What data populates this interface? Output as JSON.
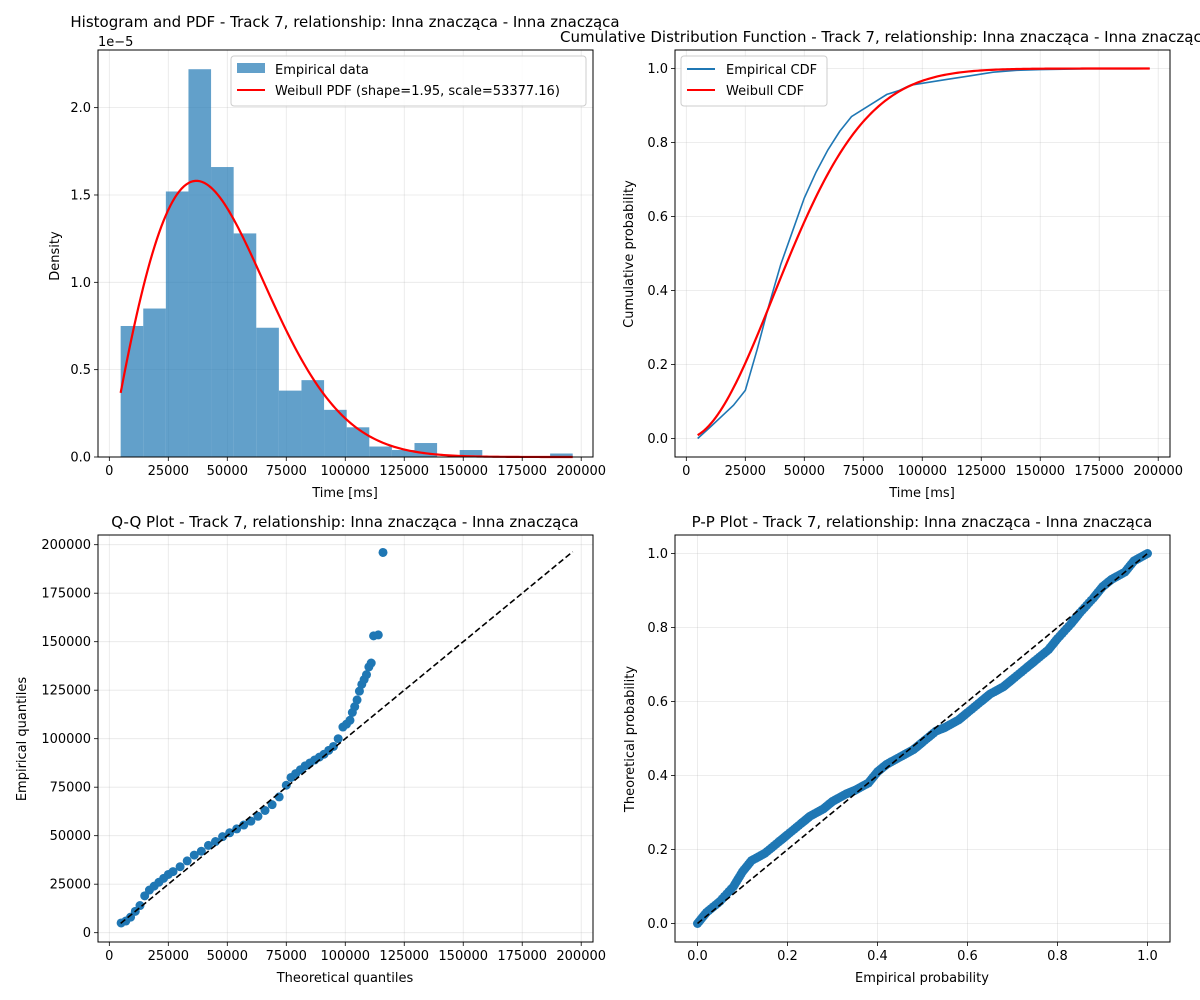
{
  "chart_data": [
    {
      "id": "hist",
      "type": "bar",
      "title": "Histogram and PDF - Track 7, relationship: Inna znacząca - Inna znacząca",
      "xlabel": "Time [ms]",
      "ylabel": "Density",
      "y_offset_label": "1e−5",
      "xlim": [
        -4800,
        205000
      ],
      "ylim": [
        0,
        2.33
      ],
      "xticks": [
        0,
        25000,
        50000,
        75000,
        100000,
        125000,
        150000,
        175000,
        200000
      ],
      "xtick_labels": [
        "0",
        "25000",
        "50000",
        "75000",
        "100000",
        "125000",
        "150000",
        "175000",
        "200000"
      ],
      "yticks": [
        0,
        0.5,
        1.0,
        1.5,
        2.0
      ],
      "ytick_labels": [
        "0.0",
        "0.5",
        "1.0",
        "1.5",
        "2.0"
      ],
      "grid": true,
      "legend_position": "upper-right",
      "bin_edges": [
        4800,
        14380,
        23960,
        33540,
        43120,
        52700,
        62280,
        71860,
        81440,
        91020,
        100600,
        110180,
        119760,
        129340,
        138920,
        148500,
        158080,
        167660,
        177240,
        186820,
        196400
      ],
      "values": [
        0.75,
        0.85,
        1.52,
        2.22,
        1.66,
        1.28,
        0.74,
        0.38,
        0.44,
        0.27,
        0.17,
        0.06,
        0.04,
        0.08,
        0.0,
        0.04,
        0.0,
        0.0,
        0.0,
        0.02
      ],
      "series": [
        {
          "name": "Empirical data",
          "kind": "bar",
          "color": "#1f77b4"
        },
        {
          "name": "Weibull PDF (shape=1.95, scale=53377.16)",
          "kind": "line",
          "color": "#ff0000",
          "shape": 1.95,
          "scale": 53377.16,
          "x_range": [
            4800,
            196400
          ]
        }
      ]
    },
    {
      "id": "cdf",
      "type": "line",
      "title": "Cumulative Distribution Function - Track 7, relationship: Inna znacząca - Inna znacząca",
      "xlabel": "Time [ms]",
      "ylabel": "Cumulative probability",
      "xlim": [
        -4800,
        205000
      ],
      "ylim": [
        -0.05,
        1.05
      ],
      "xticks": [
        0,
        25000,
        50000,
        75000,
        100000,
        125000,
        150000,
        175000,
        200000
      ],
      "xtick_labels": [
        "0",
        "25000",
        "50000",
        "75000",
        "100000",
        "125000",
        "150000",
        "175000",
        "200000"
      ],
      "yticks": [
        0,
        0.2,
        0.4,
        0.6,
        0.8,
        1.0
      ],
      "ytick_labels": [
        "0.0",
        "0.2",
        "0.4",
        "0.6",
        "0.8",
        "1.0"
      ],
      "grid": true,
      "legend_position": "upper-left",
      "series": [
        {
          "name": "Empirical CDF",
          "kind": "line",
          "color": "#1f77b4",
          "x": [
            4800,
            10000,
            15000,
            20000,
            25000,
            30000,
            35000,
            40000,
            45000,
            50000,
            55000,
            60000,
            65000,
            70000,
            75000,
            80000,
            85000,
            90000,
            95000,
            100000,
            110000,
            120000,
            130000,
            140000,
            150000,
            160000,
            170000,
            180000,
            190000,
            196400
          ],
          "y": [
            0.0,
            0.03,
            0.06,
            0.09,
            0.13,
            0.24,
            0.36,
            0.47,
            0.56,
            0.65,
            0.72,
            0.78,
            0.83,
            0.87,
            0.89,
            0.91,
            0.93,
            0.94,
            0.955,
            0.96,
            0.97,
            0.98,
            0.99,
            0.995,
            0.997,
            0.998,
            0.999,
            0.999,
            0.999,
            1.0
          ]
        },
        {
          "name": "Weibull CDF",
          "kind": "line",
          "color": "#ff0000",
          "shape": 1.95,
          "scale": 53377.16,
          "x_range": [
            4800,
            196400
          ]
        }
      ]
    },
    {
      "id": "qq",
      "type": "scatter",
      "title": "Q-Q Plot - Track 7, relationship: Inna znacząca - Inna znacząca",
      "xlabel": "Theoretical quantiles",
      "ylabel": "Empirical quantiles",
      "xlim": [
        -4800,
        205000
      ],
      "ylim": [
        -4800,
        205000
      ],
      "xticks": [
        0,
        25000,
        50000,
        75000,
        100000,
        125000,
        150000,
        175000,
        200000
      ],
      "xtick_labels": [
        "0",
        "25000",
        "50000",
        "75000",
        "100000",
        "125000",
        "150000",
        "175000",
        "200000"
      ],
      "yticks": [
        0,
        25000,
        50000,
        75000,
        100000,
        125000,
        150000,
        175000,
        200000
      ],
      "ytick_labels": [
        "0",
        "25000",
        "50000",
        "75000",
        "100000",
        "125000",
        "150000",
        "175000",
        "200000"
      ],
      "grid": true,
      "point_color": "#1f77b4",
      "reference_line": {
        "x": [
          4800,
          196400
        ],
        "y": [
          4800,
          196400
        ],
        "color": "#000000",
        "style": "dashed"
      },
      "x": [
        5000,
        7000,
        9000,
        11000,
        13000,
        15000,
        17000,
        19000,
        21000,
        23000,
        25000,
        27000,
        30000,
        33000,
        36000,
        39000,
        42000,
        45000,
        48000,
        51000,
        54000,
        57000,
        60000,
        63000,
        66000,
        69000,
        72000,
        75000,
        77000,
        79000,
        81000,
        83000,
        85000,
        87000,
        89000,
        91000,
        93000,
        95000,
        97000,
        99000,
        100500,
        102000,
        103000,
        104000,
        105000,
        106000,
        107000,
        108000,
        109000,
        110000,
        111000,
        112000,
        114000,
        116000
      ],
      "y": [
        5000,
        6000,
        8000,
        11000,
        14000,
        19000,
        22000,
        24000,
        26000,
        28000,
        30000,
        31500,
        34000,
        37000,
        40000,
        42000,
        45000,
        47000,
        49500,
        51500,
        53500,
        55500,
        57500,
        60000,
        63000,
        66000,
        70000,
        76000,
        80000,
        82000,
        84000,
        86000,
        87500,
        89000,
        90500,
        92000,
        94000,
        96000,
        100000,
        106000,
        107500,
        109500,
        113500,
        116500,
        120000,
        124500,
        128000,
        130500,
        133000,
        137000,
        139000,
        153000,
        153500,
        196000
      ]
    },
    {
      "id": "pp",
      "type": "scatter",
      "title": "P-P Plot - Track 7, relationship: Inna znacząca - Inna znacząca",
      "xlabel": "Empirical probability",
      "ylabel": "Theoretical probability",
      "xlim": [
        -0.05,
        1.05
      ],
      "ylim": [
        -0.05,
        1.05
      ],
      "xticks": [
        0,
        0.2,
        0.4,
        0.6,
        0.8,
        1.0
      ],
      "xtick_labels": [
        "0.0",
        "0.2",
        "0.4",
        "0.6",
        "0.8",
        "1.0"
      ],
      "yticks": [
        0,
        0.2,
        0.4,
        0.6,
        0.8,
        1.0
      ],
      "ytick_labels": [
        "0.0",
        "0.2",
        "0.4",
        "0.6",
        "0.8",
        "1.0"
      ],
      "grid": true,
      "point_color": "#1f77b4",
      "reference_line": {
        "x": [
          0,
          1
        ],
        "y": [
          0,
          1
        ],
        "color": "#000000",
        "style": "dashed"
      },
      "curve_x": [
        0.0,
        0.02,
        0.05,
        0.08,
        0.1,
        0.12,
        0.15,
        0.18,
        0.2,
        0.23,
        0.25,
        0.28,
        0.3,
        0.33,
        0.35,
        0.38,
        0.4,
        0.42,
        0.45,
        0.48,
        0.5,
        0.53,
        0.55,
        0.58,
        0.6,
        0.63,
        0.65,
        0.68,
        0.7,
        0.73,
        0.75,
        0.78,
        0.8,
        0.83,
        0.85,
        0.88,
        0.9,
        0.92,
        0.95,
        0.97,
        1.0
      ],
      "curve_y": [
        0.0,
        0.03,
        0.06,
        0.1,
        0.14,
        0.17,
        0.19,
        0.22,
        0.24,
        0.27,
        0.29,
        0.31,
        0.33,
        0.35,
        0.36,
        0.38,
        0.41,
        0.43,
        0.45,
        0.47,
        0.49,
        0.52,
        0.53,
        0.55,
        0.57,
        0.6,
        0.62,
        0.64,
        0.66,
        0.69,
        0.71,
        0.74,
        0.77,
        0.81,
        0.84,
        0.88,
        0.91,
        0.93,
        0.95,
        0.98,
        1.0
      ]
    }
  ]
}
